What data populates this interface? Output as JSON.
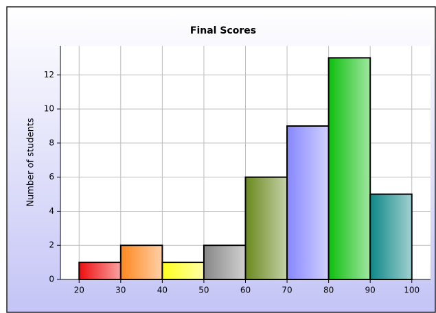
{
  "chart_data": {
    "type": "histogram",
    "title": "Final Scores",
    "y_label": "Number of students",
    "bins": [
      20,
      30,
      40,
      50,
      60,
      70,
      80,
      90,
      100
    ],
    "values": [
      1,
      2,
      1,
      2,
      6,
      9,
      13,
      5
    ],
    "colors": [
      "#ee1111",
      "#ff8820",
      "#ffff20",
      "#888888",
      "#6b8a20",
      "#8888ff",
      "#10c010",
      "#108888"
    ],
    "xlim": [
      15.5,
      104.5
    ],
    "xticks": [
      20,
      30,
      40,
      50,
      60,
      70,
      80,
      90,
      100
    ],
    "ylim": [
      0,
      13.7
    ],
    "yticks": [
      0,
      2,
      4,
      6,
      8,
      10,
      12
    ],
    "grid": true
  }
}
